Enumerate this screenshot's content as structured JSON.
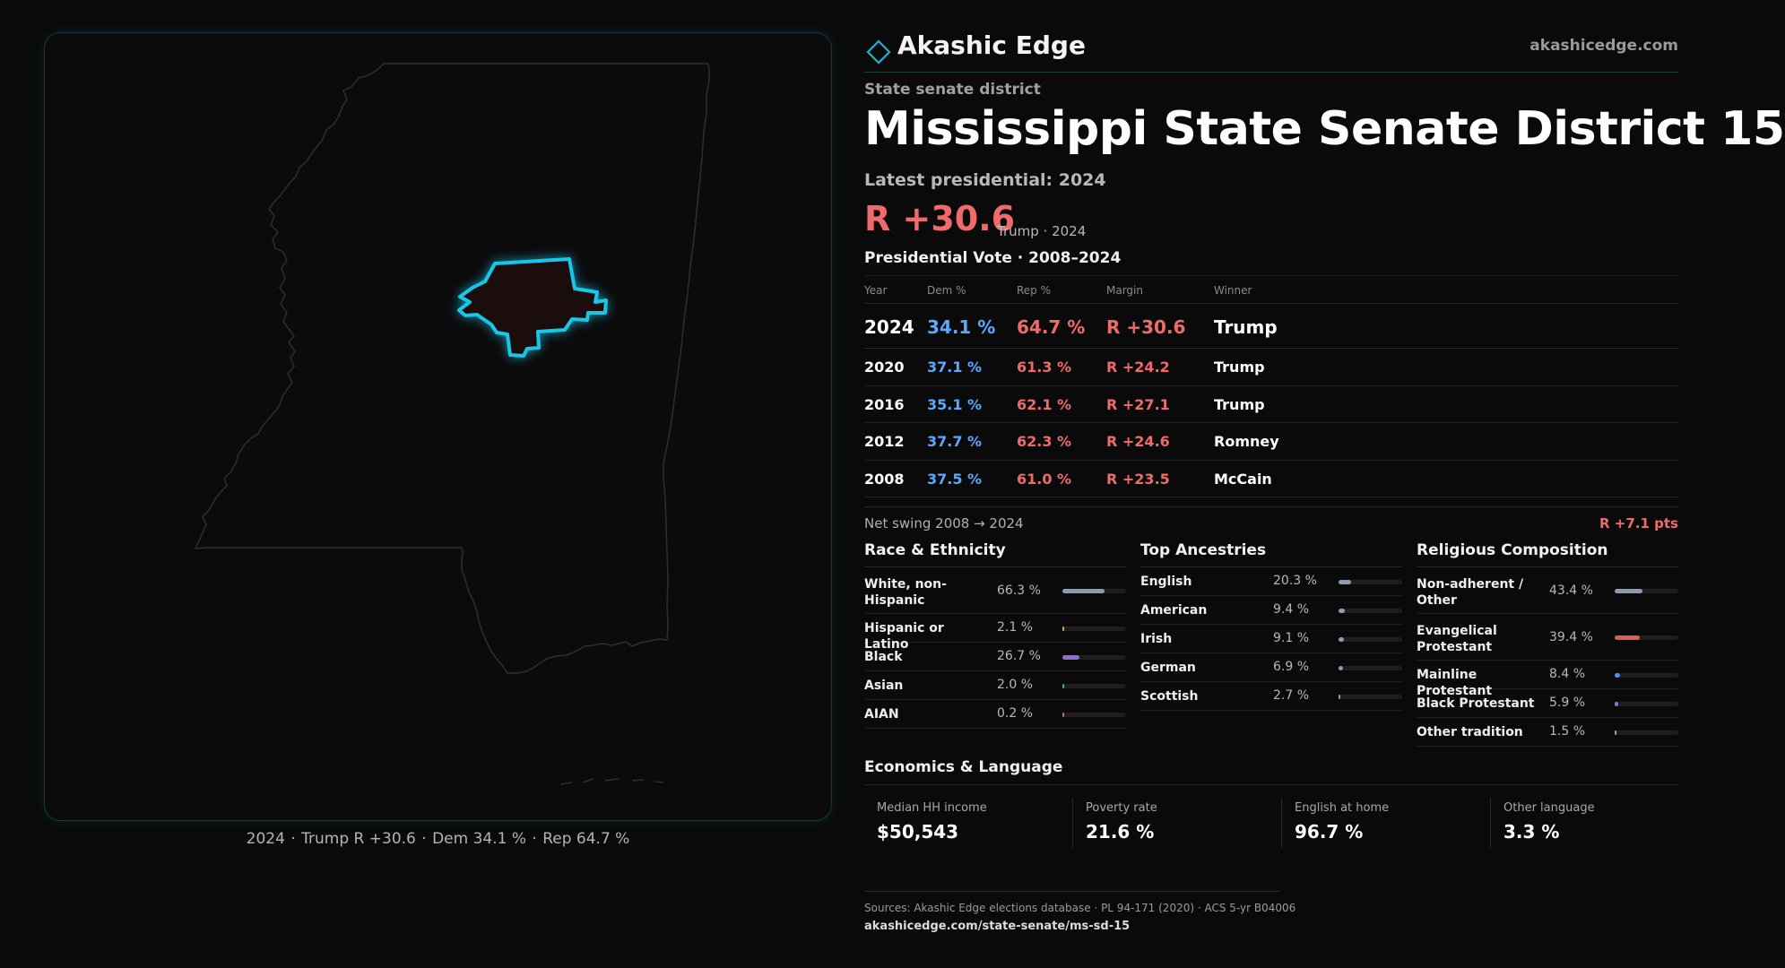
{
  "brand": {
    "name": "Akashic Edge",
    "url": "akashicedge.com",
    "logo_icon": "diamond-icon",
    "accent": "#1ab3d1"
  },
  "district": {
    "type": "State senate district",
    "title": "Mississippi State Senate District 15",
    "latest_label": "Latest presidential: 2024",
    "margin": "R +30.6",
    "margin_sub": "Trump · 2024"
  },
  "map": {
    "caption": {
      "year": "2024",
      "winner": "Trump R +30.6",
      "dem": "Dem 34.1 %",
      "rep": "Rep 64.7 %"
    }
  },
  "presidential": {
    "title": "Presidential Vote · 2008–2024",
    "headers": {
      "year": "Year",
      "dem": "Dem %",
      "rep": "Rep %",
      "margin": "Margin",
      "winner": "Winner"
    },
    "rows": [
      {
        "year": "2024",
        "dem": "34.1 %",
        "rep": "64.7 %",
        "margin": "R +30.6",
        "winner": "Trump"
      },
      {
        "year": "2020",
        "dem": "37.1 %",
        "rep": "61.3 %",
        "margin": "R +24.2",
        "winner": "Trump"
      },
      {
        "year": "2016",
        "dem": "35.1 %",
        "rep": "62.1 %",
        "margin": "R +27.1",
        "winner": "Trump"
      },
      {
        "year": "2012",
        "dem": "37.7 %",
        "rep": "62.3 %",
        "margin": "R +24.6",
        "winner": "Romney"
      },
      {
        "year": "2008",
        "dem": "37.5 %",
        "rep": "61.0 %",
        "margin": "R +23.5",
        "winner": "McCain"
      }
    ],
    "swing_label": "Net swing 2008 → 2024",
    "swing_value": "R +7.1 pts"
  },
  "race": {
    "title": "Race & Ethnicity",
    "items": [
      {
        "label": "White, non-Hispanic",
        "pct": "66.3 %",
        "value": 66.3,
        "color": "#8c9bb5"
      },
      {
        "label": "Hispanic or Latino",
        "pct": "2.1 %",
        "value": 2.1,
        "color": "#d9a441"
      },
      {
        "label": "Black",
        "pct": "26.7 %",
        "value": 26.7,
        "color": "#8b6fd6"
      },
      {
        "label": "Asian",
        "pct": "2.0 %",
        "value": 2.0,
        "color": "#3bb58a"
      },
      {
        "label": "AIAN",
        "pct": "0.2 %",
        "value": 0.2,
        "color": "#c07a4a"
      }
    ]
  },
  "ancestry": {
    "title": "Top Ancestries",
    "items": [
      {
        "label": "English",
        "pct": "20.3 %",
        "value": 20.3,
        "color": "#8c9bb5"
      },
      {
        "label": "American",
        "pct": "9.4 %",
        "value": 9.4,
        "color": "#8c9bb5"
      },
      {
        "label": "Irish",
        "pct": "9.1 %",
        "value": 9.1,
        "color": "#8c9bb5"
      },
      {
        "label": "German",
        "pct": "6.9 %",
        "value": 6.9,
        "color": "#8c9bb5"
      },
      {
        "label": "Scottish",
        "pct": "2.7 %",
        "value": 2.7,
        "color": "#8c9bb5"
      }
    ]
  },
  "religion": {
    "title": "Religious Composition",
    "items": [
      {
        "label": "Non-adherent / Other",
        "pct": "43.4 %",
        "value": 43.4,
        "color": "#8c9bb5"
      },
      {
        "label": "Evangelical Protestant",
        "pct": "39.4 %",
        "value": 39.4,
        "color": "#e05c5c"
      },
      {
        "label": "Mainline Protestant",
        "pct": "8.4 %",
        "value": 8.4,
        "color": "#4f8ef0"
      },
      {
        "label": "Black Protestant",
        "pct": "5.9 %",
        "value": 5.9,
        "color": "#8b6fd6"
      },
      {
        "label": "Other tradition",
        "pct": "1.5 %",
        "value": 1.5,
        "color": "#9aa0a6"
      }
    ]
  },
  "economics": {
    "title": "Economics & Language",
    "items": [
      {
        "label": "Median HH income",
        "value": "$50,543"
      },
      {
        "label": "Poverty rate",
        "value": "21.6 %"
      },
      {
        "label": "English at home",
        "value": "96.7 %"
      },
      {
        "label": "Other language",
        "value": "3.3 %"
      }
    ]
  },
  "footer": {
    "sources": "Sources: Akashic Edge elections database · PL 94-171 (2020) · ACS 5-yr B04006",
    "url": "akashicedge.com/state-senate/ms-sd-15"
  }
}
